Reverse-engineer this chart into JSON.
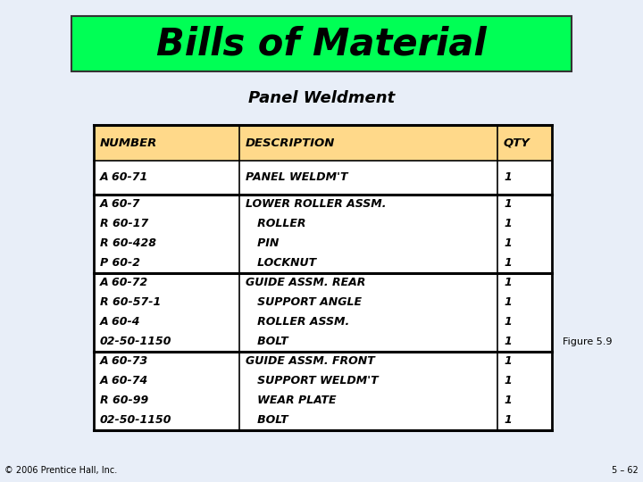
{
  "title": "Bills of Material",
  "subtitle": "Panel Weldment",
  "title_bg": "#00FF55",
  "title_border": "#333333",
  "bg_color": "#E8EEF8",
  "table_header_bg": "#FFD98A",
  "table_header_cols": [
    "NUMBER",
    "DESCRIPTION",
    "QTY"
  ],
  "rows": [
    {
      "group": [
        "A 60-71"
      ],
      "desc": [
        "PANEL WELDM'T"
      ],
      "qty": [
        "1"
      ]
    },
    {
      "group": [
        "A 60-7",
        "R 60-17",
        "R 60-428",
        "P 60-2"
      ],
      "desc": [
        "LOWER ROLLER ASSM.",
        "   ROLLER",
        "   PIN",
        "   LOCKNUT"
      ],
      "qty": [
        "1",
        "1",
        "1",
        "1"
      ]
    },
    {
      "group": [
        "A 60-72",
        "R 60-57-1",
        "A 60-4",
        "02-50-1150"
      ],
      "desc": [
        "GUIDE ASSM. REAR",
        "   SUPPORT ANGLE",
        "   ROLLER ASSM.",
        "   BOLT"
      ],
      "qty": [
        "1",
        "1",
        "1",
        "1"
      ]
    },
    {
      "group": [
        "A 60-73",
        "A 60-74",
        "R 60-99",
        "02-50-1150"
      ],
      "desc": [
        "GUIDE ASSM. FRONT",
        "   SUPPORT WELDM'T",
        "   WEAR PLATE",
        "   BOLT"
      ],
      "qty": [
        "1",
        "1",
        "1",
        "1"
      ]
    }
  ],
  "footer_left": "© 2006 Prentice Hall, Inc.",
  "footer_right": "5 – 62",
  "figure_label": "Figure 5.9"
}
